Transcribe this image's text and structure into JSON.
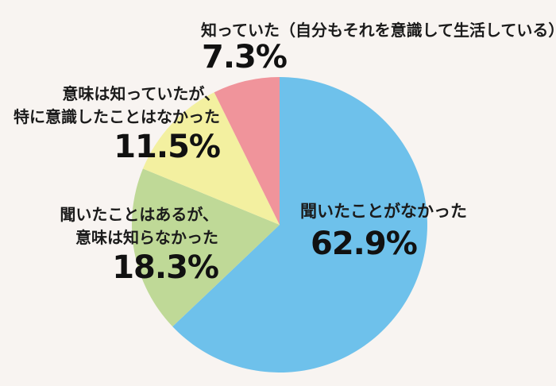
{
  "chart_data": {
    "type": "pie",
    "title": "",
    "legend": "none",
    "start_angle": "top",
    "direction": "clockwise",
    "background": "#F8F4F1",
    "text_color": "#1B1B1B",
    "slices": [
      {
        "id": "blue",
        "label": "聞いたことがなかった",
        "value": 62.9,
        "pct_label": "62.9%",
        "color": "#6EC1EB"
      },
      {
        "id": "green",
        "label": "聞いたことはあるが、意味は知らなかった",
        "value": 18.3,
        "pct_label": "18.3%",
        "color": "#BFD997"
      },
      {
        "id": "yellow",
        "label": "意味は知っていたが、特に意識したことはなかった",
        "value": 11.5,
        "pct_label": "11.5%",
        "color": "#F3F0A0"
      },
      {
        "id": "red",
        "label": "知っていた（自分もそれを意識して生活している）",
        "value": 7.3,
        "pct_label": "7.3%",
        "color": "#F0949B"
      }
    ]
  },
  "labels": {
    "red": {
      "line1": "知っていた（自分もそれを意識して生活している）",
      "pct": "7.3%"
    },
    "yellow": {
      "line1": "意味は知っていたが、",
      "line2": "特に意識したことはなかった",
      "pct": "11.5%"
    },
    "green": {
      "line1": "聞いたことはあるが、",
      "line2": "意味は知らなかった",
      "pct": "18.3%"
    },
    "blue": {
      "line1": "聞いたことがなかった",
      "pct": "62.9%"
    }
  }
}
